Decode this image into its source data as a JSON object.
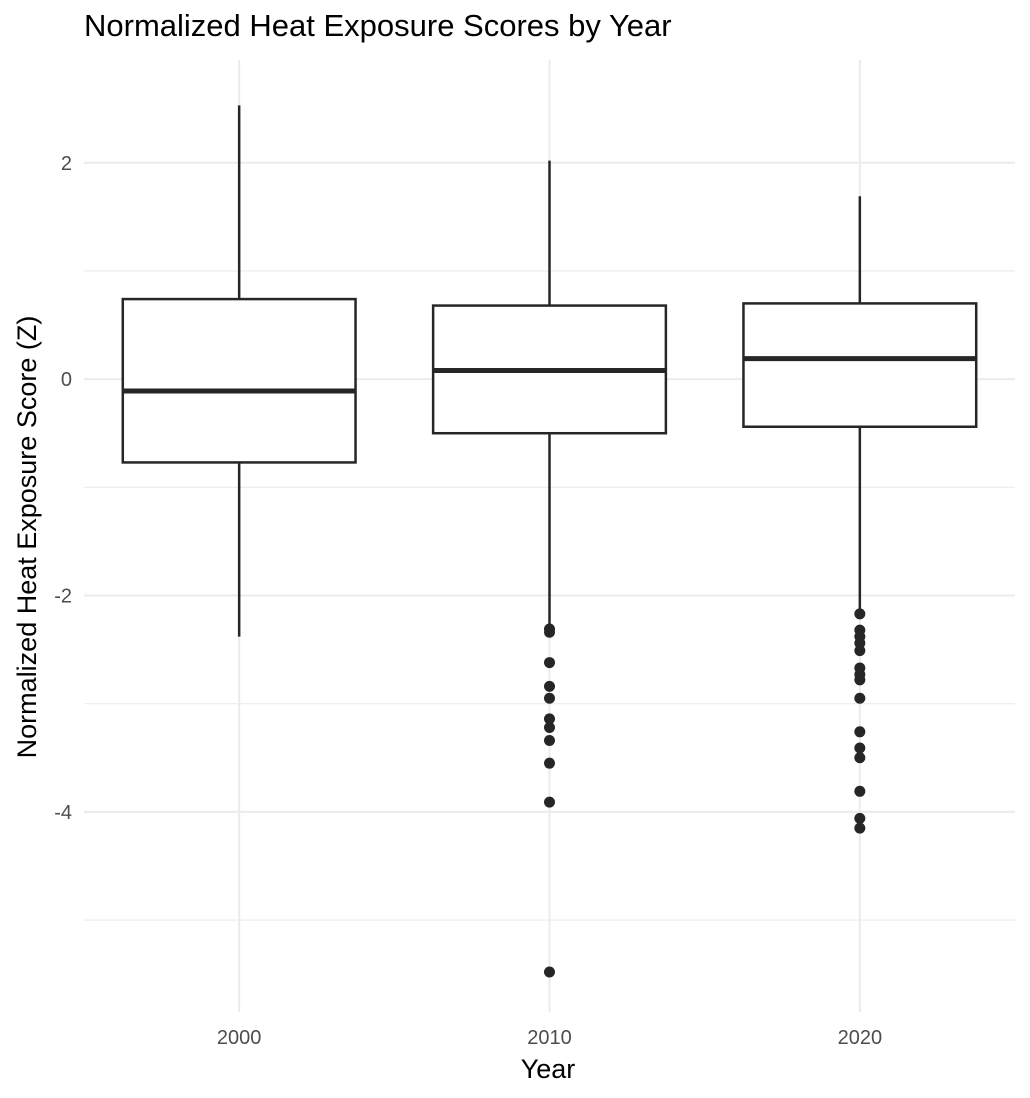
{
  "chart_data": {
    "type": "box",
    "title": "Normalized Heat Exposure Scores by Year",
    "xlabel": "Year",
    "ylabel": "Normalized Heat Exposure Score (Z)",
    "ylim": [
      -5.85,
      2.95
    ],
    "yticks": [
      2,
      0,
      -2,
      -4
    ],
    "grid": true,
    "categories": [
      "2000",
      "2010",
      "2020"
    ],
    "boxes": [
      {
        "category": "2000",
        "whisker_low": -2.38,
        "q1": -0.77,
        "median": -0.11,
        "q3": 0.74,
        "whisker_high": 2.53,
        "outliers": []
      },
      {
        "category": "2010",
        "whisker_low": -2.28,
        "q1": -0.5,
        "median": 0.08,
        "q3": 0.68,
        "whisker_high": 2.02,
        "outliers": [
          -2.31,
          -2.34,
          -2.62,
          -2.84,
          -2.95,
          -3.14,
          -3.22,
          -3.34,
          -3.55,
          -3.91,
          -5.48
        ]
      },
      {
        "category": "2020",
        "whisker_low": -2.13,
        "q1": -0.44,
        "median": 0.19,
        "q3": 0.7,
        "whisker_high": 1.69,
        "outliers": [
          -2.17,
          -2.32,
          -2.38,
          -2.44,
          -2.51,
          -2.67,
          -2.73,
          -2.78,
          -2.95,
          -3.26,
          -3.41,
          -3.5,
          -3.81,
          -4.06,
          -4.15
        ]
      }
    ]
  }
}
